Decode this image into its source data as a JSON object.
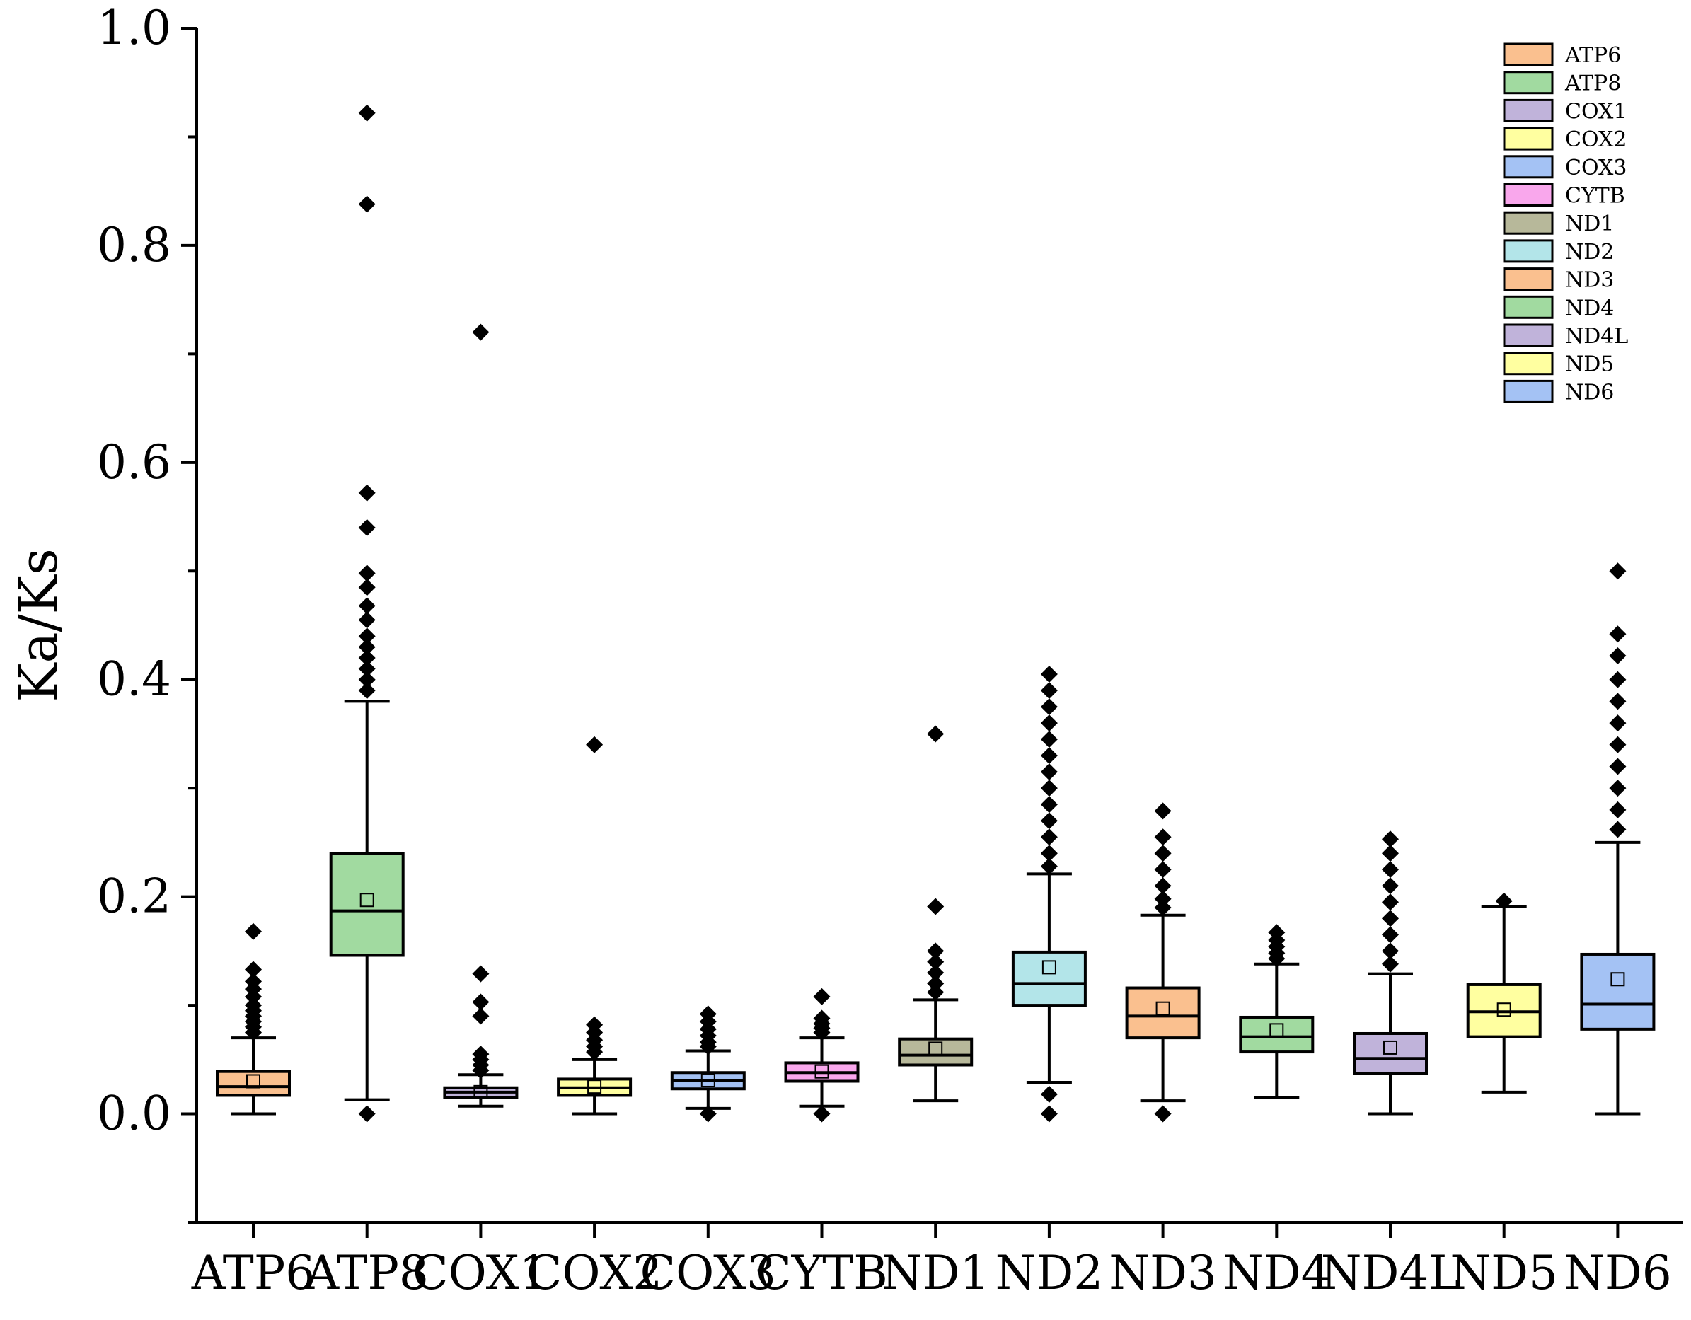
{
  "chart_data": {
    "type": "box",
    "title": "",
    "xlabel": "",
    "ylabel": "Ka/Ks",
    "ylim": [
      -0.1,
      1.0
    ],
    "yticks": [
      "0.0",
      "0.2",
      "0.4",
      "0.6",
      "0.8",
      "1.0"
    ],
    "ytick_values": [
      0.0,
      0.2,
      0.4,
      0.6,
      0.8,
      1.0
    ],
    "legend_position": "top-right",
    "categories": [
      "ATP6",
      "ATP8",
      "COX1",
      "COX2",
      "COX3",
      "CYTB",
      "ND1",
      "ND2",
      "ND3",
      "ND4",
      "ND4L",
      "ND5",
      "ND6"
    ],
    "series": [
      {
        "name": "ATP6",
        "color": "#FAC08F",
        "whisker_low": 0.0,
        "q1": 0.017,
        "median": 0.025,
        "q3": 0.039,
        "whisker_high": 0.07,
        "mean": 0.03,
        "outliers": [
          0.168,
          0.133,
          0.122,
          0.115,
          0.108,
          0.1,
          0.095,
          0.09,
          0.085,
          0.08,
          0.075
        ]
      },
      {
        "name": "ATP8",
        "color": "#A1DAA0",
        "whisker_low": 0.013,
        "q1": 0.146,
        "median": 0.187,
        "q3": 0.24,
        "whisker_high": 0.38,
        "mean": 0.197,
        "outliers": [
          0.0,
          0.922,
          0.838,
          0.572,
          0.54,
          0.498,
          0.485,
          0.468,
          0.455,
          0.44,
          0.43,
          0.42,
          0.41,
          0.4,
          0.39
        ]
      },
      {
        "name": "COX1",
        "color": "#C0B3DA",
        "whisker_low": 0.007,
        "q1": 0.015,
        "median": 0.02,
        "q3": 0.024,
        "whisker_high": 0.036,
        "mean": 0.02,
        "outliers": [
          0.72,
          0.129,
          0.103,
          0.09,
          0.055,
          0.05,
          0.045,
          0.04
        ]
      },
      {
        "name": "COX2",
        "color": "#FFFFA0",
        "whisker_low": 0.0,
        "q1": 0.017,
        "median": 0.024,
        "q3": 0.032,
        "whisker_high": 0.05,
        "mean": 0.025,
        "outliers": [
          0.34,
          0.082,
          0.075,
          0.068,
          0.062,
          0.057
        ]
      },
      {
        "name": "COX3",
        "color": "#A4C2F4",
        "whisker_low": 0.005,
        "q1": 0.023,
        "median": 0.031,
        "q3": 0.038,
        "whisker_high": 0.058,
        "mean": 0.031,
        "outliers": [
          0.0,
          0.092,
          0.085,
          0.078,
          0.072,
          0.066,
          0.062
        ]
      },
      {
        "name": "CYTB",
        "color": "#F9A7EC",
        "whisker_low": 0.007,
        "q1": 0.03,
        "median": 0.038,
        "q3": 0.047,
        "whisker_high": 0.07,
        "mean": 0.039,
        "outliers": [
          0.0,
          0.108,
          0.088,
          0.083,
          0.079,
          0.075
        ]
      },
      {
        "name": "ND1",
        "color": "#B7B89A",
        "whisker_low": 0.012,
        "q1": 0.045,
        "median": 0.054,
        "q3": 0.069,
        "whisker_high": 0.105,
        "mean": 0.06,
        "outliers": [
          0.35,
          0.191,
          0.15,
          0.14,
          0.13,
          0.12,
          0.112
        ]
      },
      {
        "name": "ND2",
        "color": "#B3E5E9",
        "whisker_low": 0.029,
        "q1": 0.1,
        "median": 0.12,
        "q3": 0.149,
        "whisker_high": 0.221,
        "mean": 0.135,
        "outliers": [
          0.0,
          0.018,
          0.405,
          0.39,
          0.375,
          0.36,
          0.345,
          0.33,
          0.315,
          0.3,
          0.285,
          0.27,
          0.255,
          0.24,
          0.228
        ]
      },
      {
        "name": "ND3",
        "color": "#FAC08F",
        "whisker_low": 0.012,
        "q1": 0.07,
        "median": 0.09,
        "q3": 0.116,
        "whisker_high": 0.183,
        "mean": 0.097,
        "outliers": [
          0.0,
          0.279,
          0.255,
          0.24,
          0.225,
          0.21,
          0.198,
          0.19
        ]
      },
      {
        "name": "ND4",
        "color": "#A1DAA0",
        "whisker_low": 0.015,
        "q1": 0.057,
        "median": 0.071,
        "q3": 0.089,
        "whisker_high": 0.138,
        "mean": 0.077,
        "outliers": [
          0.167,
          0.16,
          0.154,
          0.148,
          0.143
        ]
      },
      {
        "name": "ND4L",
        "color": "#C0B3DA",
        "whisker_low": 0.0,
        "q1": 0.037,
        "median": 0.051,
        "q3": 0.074,
        "whisker_high": 0.129,
        "mean": 0.061,
        "outliers": [
          0.253,
          0.24,
          0.225,
          0.21,
          0.195,
          0.18,
          0.165,
          0.15,
          0.138
        ]
      },
      {
        "name": "ND5",
        "color": "#FFFFA0",
        "whisker_low": 0.02,
        "q1": 0.071,
        "median": 0.094,
        "q3": 0.119,
        "whisker_high": 0.191,
        "mean": 0.096,
        "outliers": [
          0.196
        ]
      },
      {
        "name": "ND6",
        "color": "#A4C2F4",
        "whisker_low": 0.0,
        "q1": 0.078,
        "median": 0.101,
        "q3": 0.147,
        "whisker_high": 0.25,
        "mean": 0.124,
        "outliers": [
          0.5,
          0.442,
          0.422,
          0.4,
          0.38,
          0.36,
          0.34,
          0.32,
          0.3,
          0.28,
          0.262
        ]
      }
    ]
  }
}
